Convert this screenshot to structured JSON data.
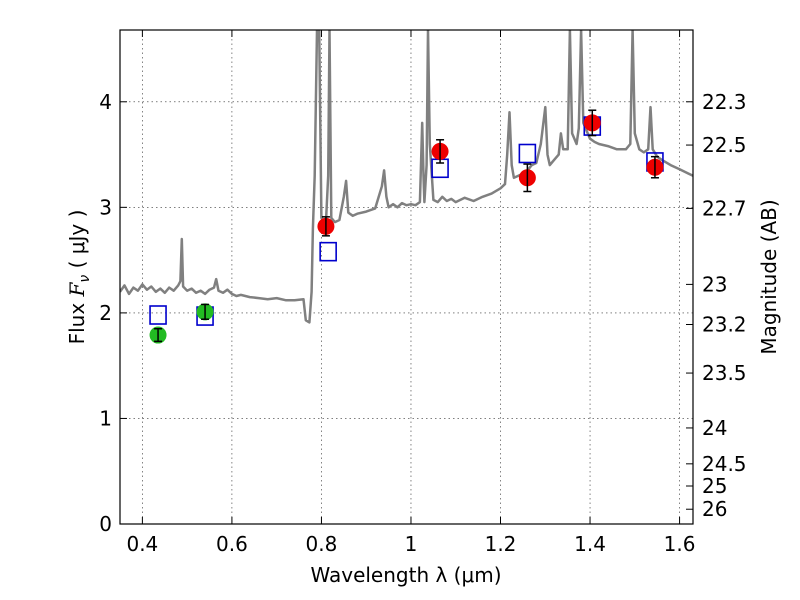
{
  "chart_data": {
    "type": "scatter",
    "xlabel": "Wavelength  λ (μm)",
    "ylabel_text": "Flux  ",
    "ylabel_symbol": "F",
    "ylabel_sub": "ν",
    "ylabel_unit": "  ( μJy )",
    "y2label": "Magnitude (AB)",
    "xlim": [
      0.35,
      1.63
    ],
    "ylim": [
      0,
      4.68
    ],
    "grid": true,
    "x_ticks": [
      0.4,
      0.6,
      0.8,
      1.0,
      1.2,
      1.4,
      1.6
    ],
    "x_tick_labels": [
      "0.4",
      "0.6",
      "0.8",
      "1",
      "1.2",
      "1.4",
      "1.6"
    ],
    "y_ticks": [
      0,
      1,
      2,
      3,
      4
    ],
    "y_tick_labels": [
      "0",
      "1",
      "2",
      "3",
      "4"
    ],
    "magnitude_ticks": [
      {
        "label": "22.3",
        "flux": 4.0
      },
      {
        "label": "22.5",
        "flux": 3.59
      },
      {
        "label": "22.7",
        "flux": 2.99
      },
      {
        "label": "23",
        "flux": 2.27
      },
      {
        "label": "23.2",
        "flux": 1.89
      },
      {
        "label": "23.5",
        "flux": 1.43
      },
      {
        "label": "24",
        "flux": 0.91
      },
      {
        "label": "24.5",
        "flux": 0.57
      },
      {
        "label": "25",
        "flux": 0.36
      },
      {
        "label": "26",
        "flux": 0.14
      }
    ],
    "model_spectrum": {
      "name": "",
      "color": "#808080",
      "points": [
        [
          0.35,
          2.2
        ],
        [
          0.36,
          2.26
        ],
        [
          0.37,
          2.18
        ],
        [
          0.38,
          2.24
        ],
        [
          0.39,
          2.21
        ],
        [
          0.4,
          2.27
        ],
        [
          0.41,
          2.22
        ],
        [
          0.42,
          2.25
        ],
        [
          0.43,
          2.2
        ],
        [
          0.44,
          2.23
        ],
        [
          0.45,
          2.19
        ],
        [
          0.46,
          2.24
        ],
        [
          0.47,
          2.21
        ],
        [
          0.48,
          2.26
        ],
        [
          0.485,
          2.3
        ],
        [
          0.488,
          2.7
        ],
        [
          0.491,
          2.25
        ],
        [
          0.5,
          2.21
        ],
        [
          0.51,
          2.23
        ],
        [
          0.52,
          2.19
        ],
        [
          0.53,
          2.21
        ],
        [
          0.54,
          2.18
        ],
        [
          0.55,
          2.22
        ],
        [
          0.56,
          2.24
        ],
        [
          0.565,
          2.32
        ],
        [
          0.57,
          2.21
        ],
        [
          0.58,
          2.19
        ],
        [
          0.59,
          2.22
        ],
        [
          0.6,
          2.18
        ],
        [
          0.61,
          2.16
        ],
        [
          0.62,
          2.17
        ],
        [
          0.64,
          2.15
        ],
        [
          0.66,
          2.14
        ],
        [
          0.68,
          2.13
        ],
        [
          0.7,
          2.14
        ],
        [
          0.72,
          2.12
        ],
        [
          0.74,
          2.12
        ],
        [
          0.76,
          2.13
        ],
        [
          0.765,
          1.93
        ],
        [
          0.773,
          1.91
        ],
        [
          0.778,
          2.2
        ],
        [
          0.781,
          2.8
        ],
        [
          0.785,
          3.3
        ],
        [
          0.79,
          4.68
        ],
        [
          0.795,
          4.68
        ],
        [
          0.8,
          2.9
        ],
        [
          0.81,
          2.85
        ],
        [
          0.815,
          3.3
        ],
        [
          0.818,
          4.68
        ],
        [
          0.822,
          2.9
        ],
        [
          0.83,
          2.86
        ],
        [
          0.84,
          2.88
        ],
        [
          0.85,
          3.1
        ],
        [
          0.855,
          3.25
        ],
        [
          0.86,
          2.95
        ],
        [
          0.87,
          2.92
        ],
        [
          0.88,
          2.94
        ],
        [
          0.9,
          2.96
        ],
        [
          0.92,
          2.99
        ],
        [
          0.935,
          3.2
        ],
        [
          0.94,
          3.35
        ],
        [
          0.945,
          3.1
        ],
        [
          0.95,
          3.0
        ],
        [
          0.96,
          3.03
        ],
        [
          0.97,
          3.0
        ],
        [
          0.98,
          3.04
        ],
        [
          0.99,
          3.02
        ],
        [
          1.0,
          3.03
        ],
        [
          1.01,
          3.02
        ],
        [
          1.02,
          3.05
        ],
        [
          1.025,
          3.8
        ],
        [
          1.028,
          3.3
        ],
        [
          1.03,
          3.05
        ],
        [
          1.035,
          3.4
        ],
        [
          1.038,
          4.68
        ],
        [
          1.042,
          3.6
        ],
        [
          1.05,
          3.07
        ],
        [
          1.06,
          3.05
        ],
        [
          1.07,
          3.1
        ],
        [
          1.08,
          3.06
        ],
        [
          1.09,
          3.08
        ],
        [
          1.1,
          3.05
        ],
        [
          1.12,
          3.09
        ],
        [
          1.14,
          3.06
        ],
        [
          1.16,
          3.1
        ],
        [
          1.18,
          3.13
        ],
        [
          1.2,
          3.18
        ],
        [
          1.21,
          3.22
        ],
        [
          1.215,
          3.5
        ],
        [
          1.22,
          3.9
        ],
        [
          1.225,
          3.4
        ],
        [
          1.23,
          3.28
        ],
        [
          1.24,
          3.3
        ],
        [
          1.25,
          3.32
        ],
        [
          1.26,
          3.35
        ],
        [
          1.27,
          3.4
        ],
        [
          1.28,
          3.42
        ],
        [
          1.29,
          3.6
        ],
        [
          1.3,
          3.95
        ],
        [
          1.305,
          3.5
        ],
        [
          1.31,
          3.4
        ],
        [
          1.32,
          3.45
        ],
        [
          1.33,
          3.5
        ],
        [
          1.335,
          3.7
        ],
        [
          1.34,
          3.55
        ],
        [
          1.35,
          3.55
        ],
        [
          1.355,
          4.68
        ],
        [
          1.36,
          3.7
        ],
        [
          1.37,
          3.6
        ],
        [
          1.375,
          3.75
        ],
        [
          1.38,
          4.68
        ],
        [
          1.385,
          3.8
        ],
        [
          1.4,
          3.65
        ],
        [
          1.41,
          3.62
        ],
        [
          1.42,
          3.6
        ],
        [
          1.44,
          3.58
        ],
        [
          1.46,
          3.55
        ],
        [
          1.48,
          3.55
        ],
        [
          1.49,
          3.6
        ],
        [
          1.495,
          4.68
        ],
        [
          1.5,
          3.7
        ],
        [
          1.51,
          3.55
        ],
        [
          1.52,
          3.52
        ],
        [
          1.53,
          3.55
        ],
        [
          1.535,
          3.95
        ],
        [
          1.54,
          3.55
        ],
        [
          1.55,
          3.48
        ],
        [
          1.56,
          3.45
        ],
        [
          1.58,
          3.4
        ],
        [
          1.6,
          3.36
        ],
        [
          1.62,
          3.32
        ],
        [
          1.63,
          3.3
        ]
      ]
    },
    "model_points": {
      "name": "",
      "color": "#0000cc",
      "points": [
        [
          0.435,
          1.98
        ],
        [
          0.54,
          1.97
        ],
        [
          0.815,
          2.58
        ],
        [
          1.065,
          3.37
        ],
        [
          1.26,
          3.51
        ],
        [
          1.405,
          3.77
        ],
        [
          1.545,
          3.43
        ]
      ]
    },
    "observed_green": {
      "name": "",
      "color": "#22bb22",
      "points": [
        {
          "x": 0.435,
          "y": 1.79,
          "err": 0.06
        },
        {
          "x": 0.54,
          "y": 2.01,
          "err": 0.07
        }
      ]
    },
    "observed_red": {
      "name": "",
      "color": "#ee0000",
      "points": [
        {
          "x": 0.81,
          "y": 2.82,
          "err": 0.09
        },
        {
          "x": 1.065,
          "y": 3.53,
          "err": 0.11
        },
        {
          "x": 1.26,
          "y": 3.28,
          "err": 0.13
        },
        {
          "x": 1.405,
          "y": 3.8,
          "err": 0.12
        },
        {
          "x": 1.545,
          "y": 3.38,
          "err": 0.1
        }
      ]
    }
  }
}
